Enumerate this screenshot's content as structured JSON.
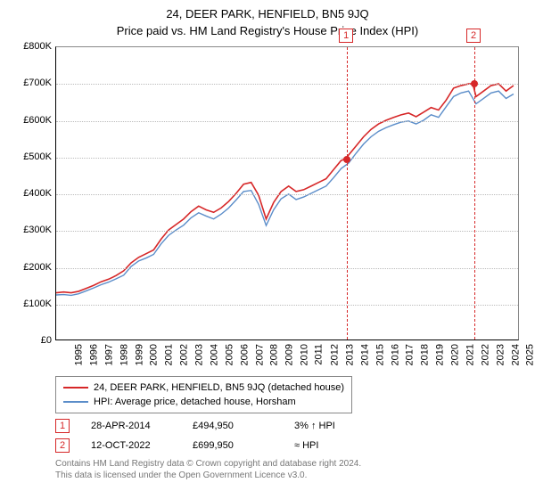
{
  "title": "24, DEER PARK, HENFIELD, BN5 9JQ",
  "subtitle": "Price paid vs. HM Land Registry's House Price Index (HPI)",
  "chart": {
    "type": "line",
    "background_color": "#ffffff",
    "grid_color": "#bbbbbb",
    "axis_color": "#000000",
    "title_fontsize": 13,
    "label_fontsize": 11,
    "ylim": [
      0,
      800000
    ],
    "ytick_step": 100000,
    "ytick_labels": [
      "£0",
      "£100K",
      "£200K",
      "£300K",
      "£400K",
      "£500K",
      "£600K",
      "£700K",
      "£800K"
    ],
    "xlim": [
      1995,
      2025.8
    ],
    "xticks": [
      1995,
      1996,
      1997,
      1998,
      1999,
      2000,
      2001,
      2002,
      2003,
      2004,
      2005,
      2006,
      2007,
      2008,
      2009,
      2010,
      2011,
      2012,
      2013,
      2014,
      2015,
      2016,
      2017,
      2018,
      2019,
      2020,
      2021,
      2022,
      2023,
      2024,
      2025
    ],
    "series": [
      {
        "name": "24, DEER PARK, HENFIELD, BN5 9JQ (detached house)",
        "color": "#d62728",
        "line_width": 1.6,
        "x": [
          1995,
          1995.5,
          1996,
          1996.5,
          1997,
          1997.5,
          1998,
          1998.5,
          1999,
          1999.5,
          2000,
          2000.5,
          2001,
          2001.5,
          2002,
          2002.5,
          2003,
          2003.5,
          2004,
          2004.5,
          2005,
          2005.5,
          2006,
          2006.5,
          2007,
          2007.5,
          2008,
          2008.5,
          2009,
          2009.5,
          2010,
          2010.5,
          2011,
          2011.5,
          2012,
          2012.5,
          2013,
          2013.5,
          2014,
          2014.32,
          2014.5,
          2015,
          2015.5,
          2016,
          2016.5,
          2017,
          2017.5,
          2018,
          2018.5,
          2019,
          2019.5,
          2020,
          2020.5,
          2021,
          2021.5,
          2022,
          2022.5,
          2022.78,
          2023,
          2023.5,
          2024,
          2024.5,
          2025,
          2025.5
        ],
        "y": [
          128000,
          130000,
          128000,
          132000,
          140000,
          148000,
          158000,
          165000,
          175000,
          188000,
          210000,
          225000,
          235000,
          245000,
          275000,
          300000,
          315000,
          330000,
          350000,
          365000,
          355000,
          348000,
          360000,
          378000,
          400000,
          425000,
          430000,
          395000,
          330000,
          375000,
          405000,
          420000,
          405000,
          410000,
          420000,
          430000,
          440000,
          465000,
          490000,
          494950,
          505000,
          530000,
          555000,
          575000,
          590000,
          600000,
          608000,
          615000,
          620000,
          610000,
          622000,
          635000,
          628000,
          655000,
          688000,
          695000,
          700000,
          699950,
          665000,
          680000,
          695000,
          700000,
          680000,
          695000
        ]
      },
      {
        "name": "HPI: Average price, detached house, Horsham",
        "color": "#5b8dc9",
        "line_width": 1.4,
        "x": [
          1995,
          1995.5,
          1996,
          1996.5,
          1997,
          1997.5,
          1998,
          1998.5,
          1999,
          1999.5,
          2000,
          2000.5,
          2001,
          2001.5,
          2002,
          2002.5,
          2003,
          2003.5,
          2004,
          2004.5,
          2005,
          2005.5,
          2006,
          2006.5,
          2007,
          2007.5,
          2008,
          2008.5,
          2009,
          2009.5,
          2010,
          2010.5,
          2011,
          2011.5,
          2012,
          2012.5,
          2013,
          2013.5,
          2014,
          2014.5,
          2015,
          2015.5,
          2016,
          2016.5,
          2017,
          2017.5,
          2018,
          2018.5,
          2019,
          2019.5,
          2020,
          2020.5,
          2021,
          2021.5,
          2022,
          2022.5,
          2023,
          2023.5,
          2024,
          2024.5,
          2025,
          2025.5
        ],
        "y": [
          122000,
          123000,
          121000,
          125000,
          133000,
          141000,
          150000,
          157000,
          166000,
          176000,
          200000,
          215000,
          223000,
          233000,
          262000,
          285000,
          300000,
          313000,
          333000,
          347000,
          338000,
          330000,
          343000,
          360000,
          382000,
          405000,
          408000,
          370000,
          312000,
          355000,
          385000,
          398000,
          383000,
          390000,
          400000,
          410000,
          420000,
          443000,
          468000,
          483000,
          510000,
          535000,
          555000,
          570000,
          580000,
          588000,
          595000,
          598000,
          590000,
          600000,
          615000,
          608000,
          637000,
          665000,
          675000,
          680000,
          645000,
          660000,
          675000,
          680000,
          660000,
          672000
        ]
      }
    ],
    "markers": [
      {
        "id": "1",
        "x": 2014.32,
        "y": 494950,
        "color": "#d62728"
      },
      {
        "id": "2",
        "x": 2022.78,
        "y": 699950,
        "color": "#d62728"
      }
    ]
  },
  "legend": {
    "border_color": "#888888",
    "items": [
      {
        "color": "#d62728",
        "label": "24, DEER PARK, HENFIELD, BN5 9JQ (detached house)"
      },
      {
        "color": "#5b8dc9",
        "label": "HPI: Average price, detached house, Horsham"
      }
    ]
  },
  "sales": [
    {
      "id": "1",
      "color": "#d62728",
      "date": "28-APR-2014",
      "price": "£494,950",
      "delta": "3% ↑ HPI"
    },
    {
      "id": "2",
      "color": "#d62728",
      "date": "12-OCT-2022",
      "price": "£699,950",
      "delta": "≈ HPI"
    }
  ],
  "footnote_lines": [
    "Contains HM Land Registry data © Crown copyright and database right 2024.",
    "This data is licensed under the Open Government Licence v3.0."
  ]
}
